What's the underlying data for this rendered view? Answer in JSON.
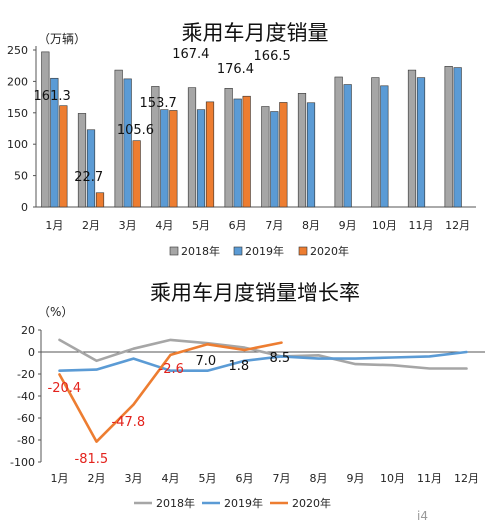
{
  "chart_data": [
    {
      "type": "bar",
      "title": "乘用车月度销量",
      "unit": "（万辆）",
      "categories": [
        "1月",
        "2月",
        "3月",
        "4月",
        "5月",
        "6月",
        "7月",
        "8月",
        "9月",
        "10月",
        "11月",
        "12月"
      ],
      "ylim": [
        0,
        250
      ],
      "yticks": [
        0,
        50,
        100,
        150,
        200,
        250
      ],
      "series": [
        {
          "name": "2018年",
          "color": "#a6a6a6",
          "values": [
            247,
            149,
            218,
            192,
            190,
            189,
            160,
            181,
            207,
            206,
            218,
            224
          ]
        },
        {
          "name": "2019年",
          "color": "#5b9bd5",
          "values": [
            205,
            123,
            204,
            155,
            155,
            172,
            152,
            166,
            195,
            193,
            206,
            222
          ]
        },
        {
          "name": "2020年",
          "color": "#ed7d31",
          "values": [
            161.3,
            22.7,
            105.6,
            153.7,
            167.4,
            176.4,
            166.5,
            null,
            null,
            null,
            null,
            null
          ]
        }
      ],
      "data_labels": [
        {
          "text": "161.3",
          "color": "black"
        },
        {
          "text": "22.7",
          "color": "black"
        },
        {
          "text": "105.6",
          "color": "black"
        },
        {
          "text": "153.7",
          "color": "black"
        },
        {
          "text": "167.4",
          "color": "black"
        },
        {
          "text": "176.4",
          "color": "black"
        },
        {
          "text": "166.5",
          "color": "black"
        }
      ],
      "legend_position": "bottom"
    },
    {
      "type": "line",
      "title": "乘用车月度销量增长率",
      "unit": "（%）",
      "categories": [
        "1月",
        "2月",
        "3月",
        "4月",
        "5月",
        "6月",
        "7月",
        "8月",
        "9月",
        "10月",
        "11月",
        "12月"
      ],
      "ylim": [
        -100,
        20
      ],
      "yticks": [
        -100,
        -80,
        -60,
        -40,
        -20,
        0,
        20
      ],
      "series": [
        {
          "name": "2018年",
          "color": "#a6a6a6",
          "values": [
            11,
            -8,
            3,
            11,
            8,
            4,
            -4,
            -3,
            -11,
            -12,
            -15,
            -15
          ]
        },
        {
          "name": "2019年",
          "color": "#5b9bd5",
          "values": [
            -17,
            -16,
            -6,
            -17,
            -17,
            -8,
            -4,
            -6,
            -6,
            -5,
            -4,
            0
          ]
        },
        {
          "name": "2020年",
          "color": "#ed7d31",
          "values": [
            -20.4,
            -81.5,
            -47.8,
            -2.6,
            7.0,
            1.8,
            8.5,
            null,
            null,
            null,
            null,
            null
          ]
        }
      ],
      "data_labels": [
        {
          "text": "-20.4",
          "color": "red"
        },
        {
          "text": "-81.5",
          "color": "red"
        },
        {
          "text": "-47.8",
          "color": "red"
        },
        {
          "text": "-2.6",
          "color": "red"
        },
        {
          "text": "7.0",
          "color": "black"
        },
        {
          "text": "1.8",
          "color": "black"
        },
        {
          "text": "8.5",
          "color": "black"
        }
      ],
      "legend_position": "bottom"
    }
  ],
  "watermark": "i4"
}
